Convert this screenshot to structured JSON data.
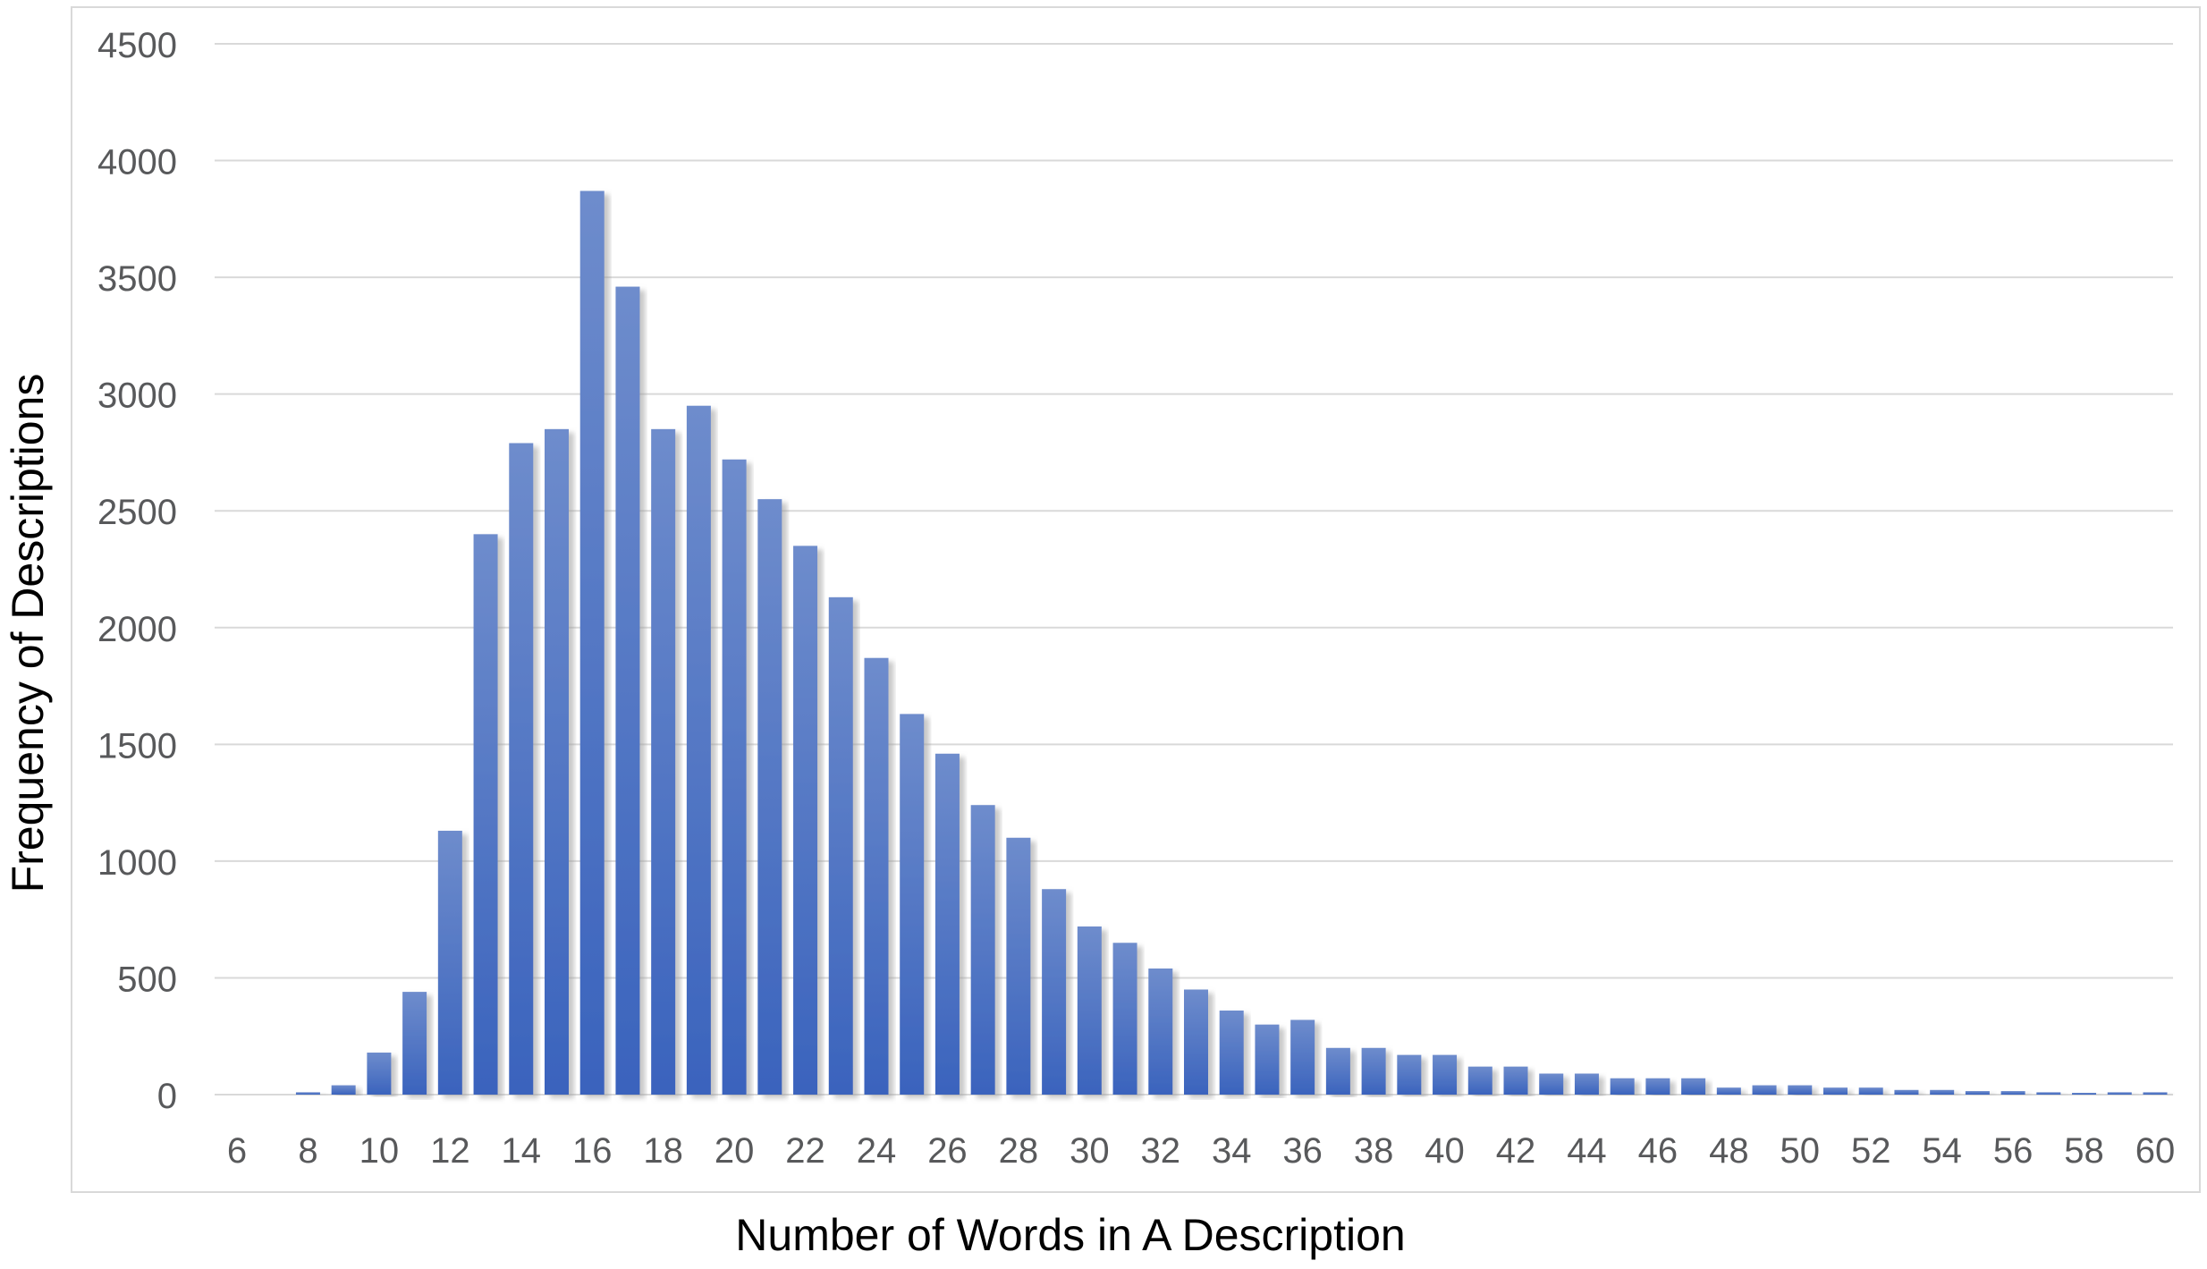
{
  "chart_data": {
    "type": "bar",
    "title": "",
    "xlabel": "Number of Words in A Description",
    "ylabel": "Frequency of Descriptions",
    "x": [
      6,
      7,
      8,
      9,
      10,
      11,
      12,
      13,
      14,
      15,
      16,
      17,
      18,
      19,
      20,
      21,
      22,
      23,
      24,
      25,
      26,
      27,
      28,
      29,
      30,
      31,
      32,
      33,
      34,
      35,
      36,
      37,
      38,
      39,
      40,
      41,
      42,
      43,
      44,
      45,
      46,
      47,
      48,
      49,
      50,
      51,
      52,
      53,
      54,
      55,
      56,
      57,
      58,
      59,
      60
    ],
    "values": [
      0,
      0,
      10,
      40,
      180,
      440,
      1130,
      2400,
      2790,
      2850,
      3870,
      3460,
      2850,
      2950,
      2720,
      2550,
      2350,
      2130,
      1870,
      1630,
      1460,
      1240,
      1100,
      880,
      720,
      650,
      540,
      450,
      360,
      300,
      320,
      200,
      200,
      170,
      170,
      120,
      120,
      90,
      90,
      70,
      70,
      70,
      30,
      40,
      40,
      30,
      30,
      20,
      20,
      15,
      15,
      10,
      5,
      10,
      10
    ],
    "xticks": [
      "6",
      "8",
      "10",
      "12",
      "14",
      "16",
      "18",
      "20",
      "22",
      "24",
      "26",
      "28",
      "30",
      "32",
      "34",
      "36",
      "38",
      "40",
      "42",
      "44",
      "46",
      "48",
      "50",
      "52",
      "54",
      "56",
      "58",
      "60"
    ],
    "yticks": [
      "0",
      "500",
      "1000",
      "1500",
      "2000",
      "2500",
      "3000",
      "3500",
      "4000",
      "4500"
    ],
    "ylim": [
      0,
      4500
    ],
    "grid": true,
    "legend": "none",
    "colors": {
      "bar_top": "#6e8ccc",
      "bar_bottom": "#3a63bd",
      "bar_shadow": "#b9b9b9",
      "gridline": "#d9d9d9",
      "tick_text": "#58595b",
      "axis_title": "#000000",
      "frame": "#d9d9d9"
    }
  }
}
